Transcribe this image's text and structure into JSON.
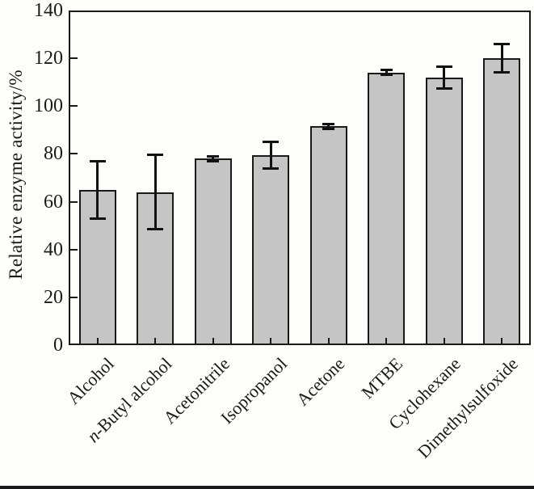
{
  "figure": {
    "kind": "scientific-bar-chart"
  },
  "chart_data": {
    "type": "bar",
    "title": "",
    "xlabel": "",
    "ylabel": "Relative enzyme activity/%",
    "ylim": [
      0,
      140
    ],
    "yticks": [
      0,
      20,
      40,
      60,
      80,
      100,
      120,
      140
    ],
    "grid": false,
    "frame": true,
    "legend": null,
    "bar_color": "#c5c5c5",
    "bar_border_color": "#1a1a1a",
    "error_bar_color": "#111111",
    "categories": [
      "Alcohol",
      "n-Butyl alcohol",
      "Acetonitrile",
      "Isopropanol",
      "Acetone",
      "MTBE",
      "Cyclohexane",
      "Dimethylsulfoxide"
    ],
    "italic_first_char_category_index": 1,
    "values": [
      65,
      64,
      78,
      79.5,
      91.5,
      114,
      112,
      120
    ],
    "errors": [
      12,
      15.5,
      1,
      5.5,
      1,
      1,
      4.5,
      6
    ]
  }
}
